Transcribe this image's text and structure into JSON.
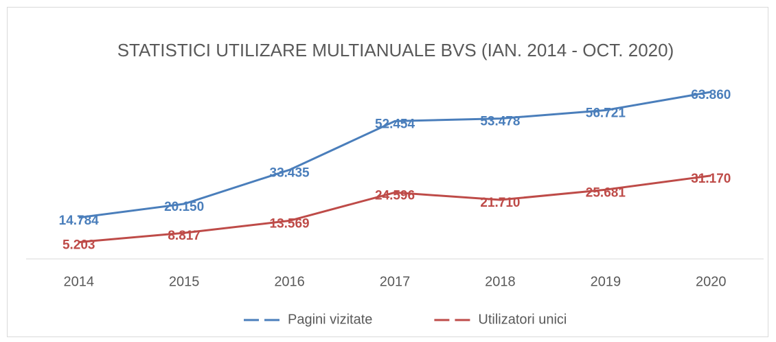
{
  "chart_data": {
    "type": "line",
    "title": "STATISTICI UTILIZARE MULTIANUALE BVS (IAN. 2014 - OCT. 2020)",
    "categories": [
      "2014",
      "2015",
      "2016",
      "2017",
      "2018",
      "2019",
      "2020"
    ],
    "series": [
      {
        "name": "Pagini vizitate",
        "color": "#4a7ebb",
        "values": [
          14784,
          20150,
          33435,
          52454,
          53478,
          56721,
          63860
        ],
        "value_labels": [
          "14.784",
          "20.150",
          "33.435",
          "52.454",
          "53.478",
          "56.721",
          "63.860"
        ]
      },
      {
        "name": "Utilizatori unici",
        "color": "#be4b48",
        "values": [
          5203,
          8817,
          13569,
          24596,
          21710,
          25681,
          31170
        ],
        "value_labels": [
          "5.203",
          "8.817",
          "13.569",
          "24.596",
          "21.710",
          "25.681",
          "31.170"
        ]
      }
    ],
    "ylim": [
      0,
      70000
    ],
    "legend": "bottom"
  }
}
